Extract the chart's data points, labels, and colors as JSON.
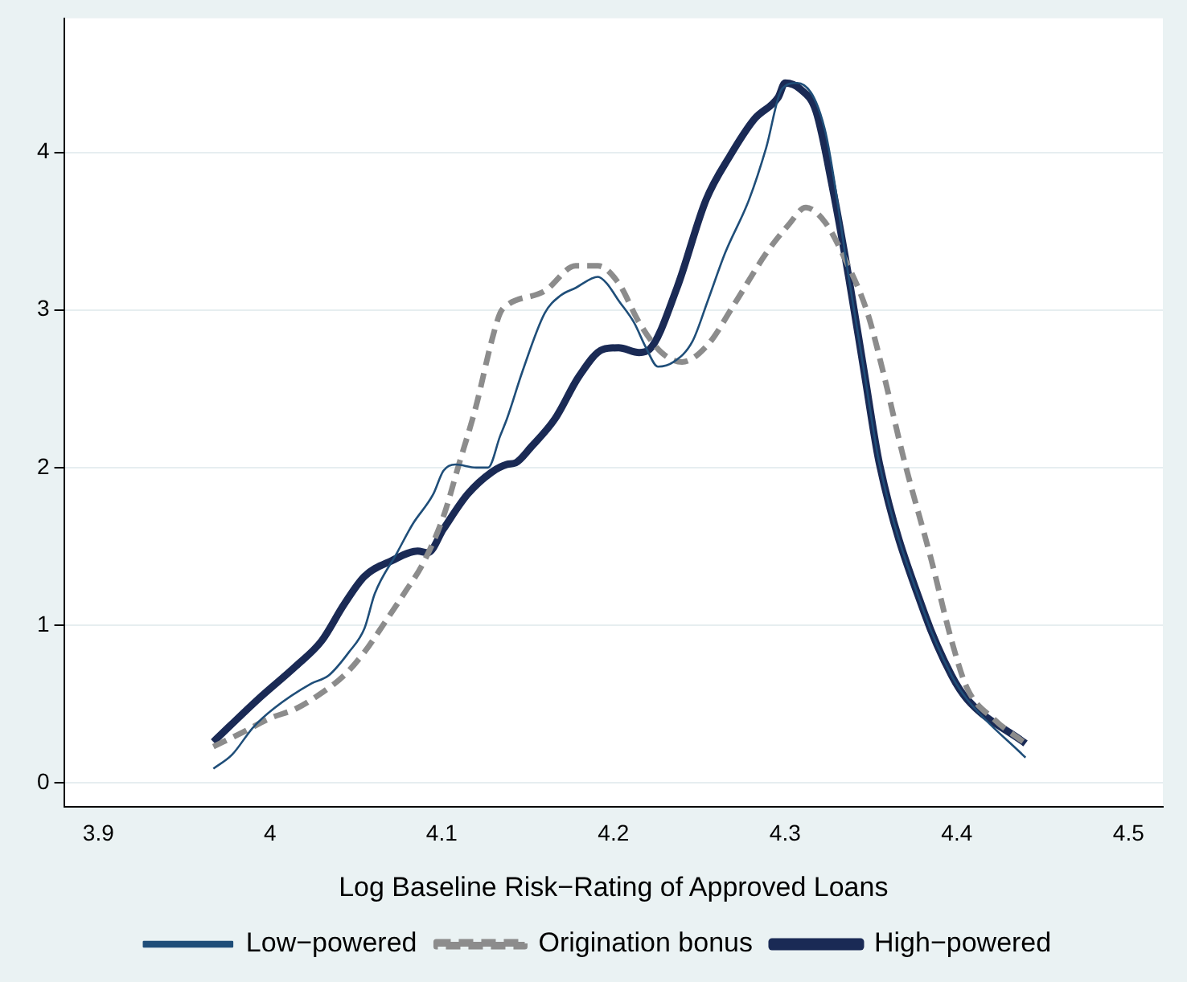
{
  "chart_data": {
    "type": "line",
    "xlabel": "Log Baseline Risk−Rating of Approved Loans",
    "xlim": [
      3.88,
      4.52
    ],
    "xticks": [
      3.9,
      4,
      4.1,
      4.2,
      4.3,
      4.4,
      4.5
    ],
    "ylim": [
      -0.15,
      4.85
    ],
    "yticks": [
      0,
      1,
      2,
      3,
      4
    ],
    "grid": "y",
    "legend": "bottom",
    "marker": "none",
    "series": [
      {
        "name": "Low−powered",
        "color": "#1f4e79",
        "line_style": "solid",
        "x": [
          3.967,
          3.978,
          3.99,
          4.002,
          4.024,
          4.034,
          4.046,
          4.055,
          4.061,
          4.074,
          4.083,
          4.095,
          4.101,
          4.108,
          4.12,
          4.127,
          4.134,
          4.138,
          4.147,
          4.16,
          4.169,
          4.178,
          4.191,
          4.196,
          4.203,
          4.212,
          4.219,
          4.226,
          4.235,
          4.246,
          4.255,
          4.265,
          4.279,
          4.289,
          4.298,
          4.307,
          4.323,
          4.337,
          4.346,
          4.355,
          4.381,
          4.397,
          4.406,
          4.44
        ],
        "values": [
          0.09,
          0.18,
          0.35,
          0.47,
          0.63,
          0.68,
          0.83,
          0.98,
          1.2,
          1.46,
          1.64,
          1.83,
          1.98,
          2.02,
          2.0,
          2.0,
          2.2,
          2.31,
          2.61,
          2.98,
          3.09,
          3.14,
          3.21,
          3.17,
          3.06,
          2.92,
          2.76,
          2.64,
          2.67,
          2.8,
          3.06,
          3.36,
          3.7,
          4.03,
          4.4,
          4.44,
          4.15,
          3.21,
          2.61,
          2.02,
          1.08,
          0.68,
          0.53,
          0.16
        ]
      },
      {
        "name": "Origination bonus",
        "color": "#8c8c8c",
        "line_style": "dashed",
        "x": [
          3.967,
          3.984,
          4.0,
          4.015,
          4.03,
          4.043,
          4.055,
          4.067,
          4.078,
          4.089,
          4.101,
          4.11,
          4.12,
          4.129,
          4.134,
          4.138,
          4.16,
          4.178,
          4.191,
          4.203,
          4.215,
          4.228,
          4.24,
          4.255,
          4.27,
          4.289,
          4.302,
          4.312,
          4.323,
          4.335,
          4.348,
          4.357,
          4.369,
          4.385,
          4.397,
          4.406,
          4.422,
          4.44
        ],
        "values": [
          0.23,
          0.32,
          0.41,
          0.47,
          0.57,
          0.68,
          0.83,
          1.02,
          1.2,
          1.39,
          1.69,
          2.02,
          2.39,
          2.8,
          2.98,
          3.03,
          3.12,
          3.28,
          3.28,
          3.17,
          2.92,
          2.73,
          2.67,
          2.78,
          3.03,
          3.36,
          3.54,
          3.65,
          3.56,
          3.32,
          2.98,
          2.61,
          2.06,
          1.42,
          0.9,
          0.6,
          0.4,
          0.25
        ]
      },
      {
        "name": "High−powered",
        "color": "#1a2a55",
        "line_style": "solid",
        "x": [
          3.967,
          3.993,
          4.015,
          4.03,
          4.043,
          4.055,
          4.071,
          4.086,
          4.092,
          4.101,
          4.115,
          4.129,
          4.138,
          4.143,
          4.152,
          4.166,
          4.18,
          4.194,
          4.203,
          4.215,
          4.221,
          4.237,
          4.254,
          4.268,
          4.282,
          4.296,
          4.3,
          4.309,
          4.318,
          4.327,
          4.337,
          4.346,
          4.355,
          4.381,
          4.397,
          4.406,
          4.44
        ],
        "values": [
          0.26,
          0.53,
          0.74,
          0.9,
          1.13,
          1.31,
          1.41,
          1.47,
          1.46,
          1.61,
          1.83,
          1.97,
          2.02,
          2.03,
          2.13,
          2.31,
          2.58,
          2.75,
          2.76,
          2.73,
          2.75,
          3.14,
          3.7,
          3.98,
          4.21,
          4.35,
          4.44,
          4.4,
          4.26,
          3.81,
          3.21,
          2.61,
          2.02,
          1.08,
          0.68,
          0.53,
          0.25
        ]
      }
    ]
  }
}
